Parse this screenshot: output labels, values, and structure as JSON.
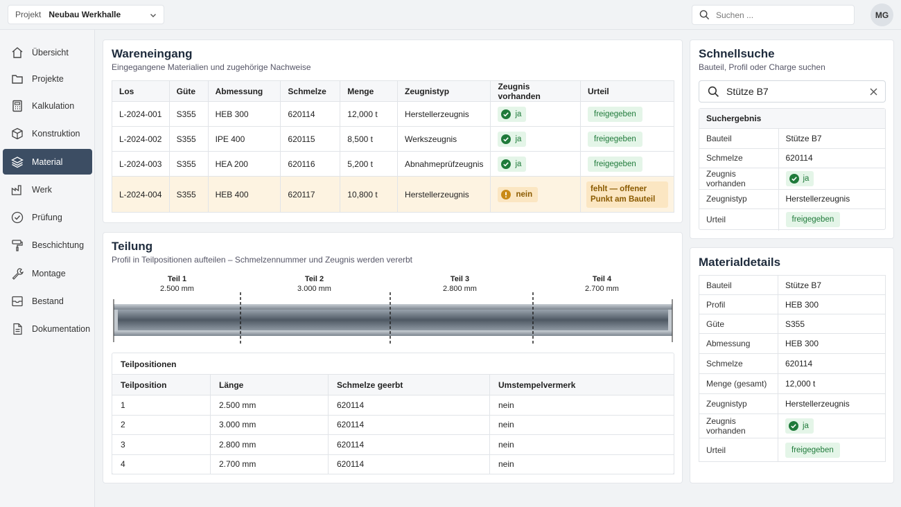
{
  "header": {
    "project_label": "Projekt",
    "project_value": "Neubau Werkhalle",
    "search_placeholder": "Suchen ...",
    "avatar_initials": "MG"
  },
  "sidebar": {
    "items": [
      {
        "label": "Übersicht",
        "icon": "home-icon"
      },
      {
        "label": "Projekte",
        "icon": "folder-icon"
      },
      {
        "label": "Kalkulation",
        "icon": "calculator-icon"
      },
      {
        "label": "Konstruktion",
        "icon": "cube-icon"
      },
      {
        "label": "Material",
        "icon": "layers-icon",
        "active": true
      },
      {
        "label": "Werk",
        "icon": "factory-icon"
      },
      {
        "label": "Prüfung",
        "icon": "check-circle-icon"
      },
      {
        "label": "Beschichtung",
        "icon": "paint-roller-icon"
      },
      {
        "label": "Montage",
        "icon": "wrench-icon"
      },
      {
        "label": "Bestand",
        "icon": "archive-icon"
      },
      {
        "label": "Dokumentation",
        "icon": "document-icon"
      }
    ]
  },
  "incoming": {
    "title": "Wareneingang",
    "subtitle": "Eingegangene Materialien und zugehörige Nachweise",
    "columns": [
      "Los",
      "Güte",
      "Abmessung",
      "Schmelze",
      "Menge",
      "Zeugnistyp",
      "Zeugnis vorhanden",
      "Urteil"
    ],
    "rows": [
      {
        "los": "L-2024-001",
        "guete": "S355",
        "abmessung": "HEB 300",
        "schmelze": "620114",
        "menge": "12,000 t",
        "zeugnistyp": "Herstellerzeugnis",
        "zeugnis": "ja",
        "urteil": "freigegeben"
      },
      {
        "los": "L-2024-002",
        "guete": "S355",
        "abmessung": "IPE 400",
        "schmelze": "620115",
        "menge": "8,500 t",
        "zeugnistyp": "Werkszeugnis",
        "zeugnis": "ja",
        "urteil": "freigegeben"
      },
      {
        "los": "L-2024-003",
        "guete": "S355",
        "abmessung": "HEA 200",
        "schmelze": "620116",
        "menge": "5,200 t",
        "zeugnistyp": "Abnahmeprüfzeugnis",
        "zeugnis": "ja",
        "urteil": "freigegeben"
      },
      {
        "los": "L-2024-004",
        "guete": "S355",
        "abmessung": "HEB 400",
        "schmelze": "620117",
        "menge": "10,800 t",
        "zeugnistyp": "Herstellerzeugnis",
        "zeugnis": "nein",
        "urteil": "fehlt — offener Punkt am Bauteil"
      }
    ]
  },
  "split": {
    "title": "Teilung",
    "subtitle": "Profil in Teilpositionen aufteilen – Schmelzennummer und Zeugnis werden vererbt",
    "parts": [
      {
        "label": "Teil 1",
        "length": "2.500 mm"
      },
      {
        "label": "Teil 2",
        "length": "3.000 mm"
      },
      {
        "label": "Teil 3",
        "length": "2.800 mm"
      },
      {
        "label": "Teil 4",
        "length": "2.700 mm"
      }
    ],
    "positions_title": "Teilpositionen",
    "columns": [
      "Teilposition",
      "Länge",
      "Schmelze geerbt",
      "Umstempelvermerk"
    ],
    "rows": [
      {
        "pos": "1",
        "length": "2.500 mm",
        "heat": "620114",
        "stamp": "nein"
      },
      {
        "pos": "2",
        "length": "3.000 mm",
        "heat": "620114",
        "stamp": "nein"
      },
      {
        "pos": "3",
        "length": "2.800 mm",
        "heat": "620114",
        "stamp": "nein"
      },
      {
        "pos": "4",
        "length": "2.700 mm",
        "heat": "620114",
        "stamp": "nein"
      }
    ]
  },
  "quicksearch": {
    "title": "Schnellsuche",
    "subtitle": "Bauteil, Profil oder Charge suchen",
    "query": "Stütze B7",
    "result_title": "Suchergebnis",
    "rows": [
      {
        "key": "Bauteil",
        "value": "Stütze B7"
      },
      {
        "key": "Schmelze",
        "value": "620114"
      },
      {
        "key": "Zeugnis vorhanden",
        "value": "ja"
      },
      {
        "key": "Zeugnistyp",
        "value": "Herstellerzeugnis"
      },
      {
        "key": "Urteil",
        "value": "freigegeben"
      }
    ]
  },
  "details": {
    "title": "Materialdetails",
    "rows": [
      {
        "key": "Bauteil",
        "value": "Stütze B7"
      },
      {
        "key": "Profil",
        "value": "HEB 300"
      },
      {
        "key": "Güte",
        "value": "S355"
      },
      {
        "key": "Abmessung",
        "value": "HEB 300"
      },
      {
        "key": "Schmelze",
        "value": "620114"
      },
      {
        "key": "Menge (gesamt)",
        "value": "12,000 t"
      },
      {
        "key": "Zeugnistyp",
        "value": "Herstellerzeugnis"
      },
      {
        "key": "Zeugnis vorhanden",
        "value": "ja"
      },
      {
        "key": "Urteil",
        "value": "freigegeben"
      }
    ]
  },
  "colors": {
    "active_nav": "#3c4d63",
    "ok_bg": "#e4f5e8",
    "ok_text": "#1f7a3a",
    "warn_bg": "#fbe6c2",
    "warn_text": "#8a5a00"
  }
}
